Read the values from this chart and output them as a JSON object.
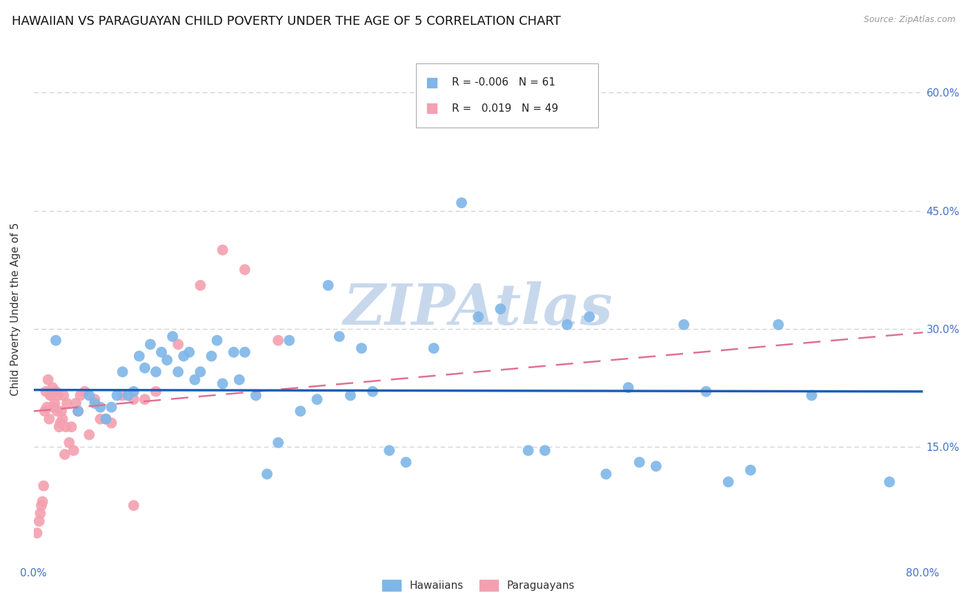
{
  "title": "HAWAIIAN VS PARAGUAYAN CHILD POVERTY UNDER THE AGE OF 5 CORRELATION CHART",
  "source": "Source: ZipAtlas.com",
  "ylabel": "Child Poverty Under the Age of 5",
  "xlim": [
    0,
    0.8
  ],
  "ylim": [
    0,
    0.65
  ],
  "ytick_values": [
    0.0,
    0.15,
    0.3,
    0.45,
    0.6
  ],
  "ytick_right_labels": [
    "15.0%",
    "30.0%",
    "45.0%",
    "60.0%"
  ],
  "ytick_right_values": [
    0.15,
    0.3,
    0.45,
    0.6
  ],
  "xtick_positions": [
    0.0,
    0.1,
    0.2,
    0.3,
    0.4,
    0.5,
    0.6,
    0.7,
    0.8
  ],
  "xtick_labels": [
    "0.0%",
    "",
    "",
    "",
    "",
    "",
    "",
    "",
    "80.0%"
  ],
  "legend_r_hawaiian": "-0.006",
  "legend_n_hawaiian": "61",
  "legend_r_paraguayan": "0.019",
  "legend_n_paraguayan": "49",
  "hawaiian_color": "#7eb6e8",
  "paraguayan_color": "#f4a0b0",
  "hawaiian_line_color": "#1a5fb4",
  "paraguayan_line_color": "#e07090",
  "watermark": "ZIPAtlas",
  "hawaiians_x": [
    0.02,
    0.04,
    0.05,
    0.055,
    0.06,
    0.065,
    0.07,
    0.075,
    0.08,
    0.085,
    0.09,
    0.095,
    0.1,
    0.105,
    0.11,
    0.115,
    0.12,
    0.125,
    0.13,
    0.135,
    0.14,
    0.145,
    0.15,
    0.16,
    0.165,
    0.17,
    0.18,
    0.185,
    0.19,
    0.2,
    0.21,
    0.22,
    0.23,
    0.24,
    0.255,
    0.265,
    0.275,
    0.285,
    0.295,
    0.305,
    0.32,
    0.335,
    0.36,
    0.385,
    0.4,
    0.42,
    0.445,
    0.46,
    0.48,
    0.5,
    0.515,
    0.535,
    0.545,
    0.56,
    0.585,
    0.605,
    0.625,
    0.645,
    0.67,
    0.7,
    0.77
  ],
  "hawaiians_y": [
    0.285,
    0.195,
    0.215,
    0.205,
    0.2,
    0.185,
    0.2,
    0.215,
    0.245,
    0.215,
    0.22,
    0.265,
    0.25,
    0.28,
    0.245,
    0.27,
    0.26,
    0.29,
    0.245,
    0.265,
    0.27,
    0.235,
    0.245,
    0.265,
    0.285,
    0.23,
    0.27,
    0.235,
    0.27,
    0.215,
    0.115,
    0.155,
    0.285,
    0.195,
    0.21,
    0.355,
    0.29,
    0.215,
    0.275,
    0.22,
    0.145,
    0.13,
    0.275,
    0.46,
    0.315,
    0.325,
    0.145,
    0.145,
    0.305,
    0.315,
    0.115,
    0.225,
    0.13,
    0.125,
    0.305,
    0.22,
    0.105,
    0.12,
    0.305,
    0.215,
    0.105
  ],
  "paraguayans_x": [
    0.003,
    0.005,
    0.006,
    0.007,
    0.008,
    0.009,
    0.01,
    0.011,
    0.012,
    0.013,
    0.014,
    0.015,
    0.016,
    0.017,
    0.018,
    0.019,
    0.02,
    0.021,
    0.022,
    0.023,
    0.024,
    0.025,
    0.026,
    0.027,
    0.028,
    0.029,
    0.03,
    0.032,
    0.034,
    0.036,
    0.038,
    0.04,
    0.042,
    0.046,
    0.05,
    0.055,
    0.06,
    0.07,
    0.08,
    0.09,
    0.1,
    0.11,
    0.13,
    0.15,
    0.17,
    0.19,
    0.22,
    0.09,
    0.065
  ],
  "paraguayans_y": [
    0.04,
    0.055,
    0.065,
    0.075,
    0.08,
    0.1,
    0.195,
    0.22,
    0.2,
    0.235,
    0.185,
    0.215,
    0.215,
    0.225,
    0.2,
    0.205,
    0.22,
    0.195,
    0.215,
    0.175,
    0.18,
    0.195,
    0.185,
    0.215,
    0.14,
    0.175,
    0.205,
    0.155,
    0.175,
    0.145,
    0.205,
    0.195,
    0.215,
    0.22,
    0.165,
    0.21,
    0.185,
    0.18,
    0.215,
    0.21,
    0.21,
    0.22,
    0.28,
    0.355,
    0.4,
    0.375,
    0.285,
    0.075,
    0.185
  ],
  "background_color": "#ffffff",
  "grid_color": "#cccccc",
  "axis_color": "#4472c4",
  "title_fontsize": 13,
  "axis_label_fontsize": 11,
  "tick_fontsize": 11,
  "watermark_color": "#c8d8ec",
  "watermark_fontsize": 60,
  "hawaiian_trend_start_y": 0.222,
  "hawaiian_trend_end_y": 0.22,
  "paraguayan_trend_start_y": 0.195,
  "paraguayan_trend_end_y": 0.295
}
